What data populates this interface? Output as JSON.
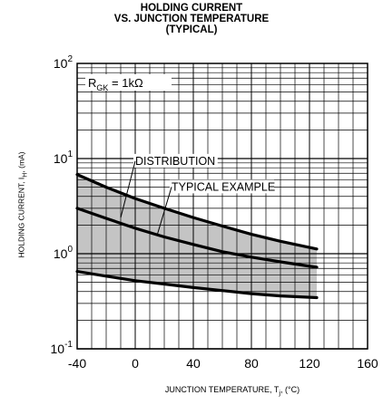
{
  "chart_data": {
    "type": "line",
    "title": "HOLDING CURRENT",
    "subtitle": [
      "VS. JUNCTION TEMPERATURE",
      "(TYPICAL)"
    ],
    "xlabel": "JUNCTION TEMPERATURE, T",
    "xlabel_sub": "j",
    "xlabel_unit": ", (°C)",
    "ylabel": "HOLDING CURRENT, I",
    "ylabel_sub": "H",
    "ylabel_unit": ", (mA)",
    "x_ticks": [
      "-40",
      "0",
      "40",
      "80",
      "120",
      "160"
    ],
    "xlim": [
      -40,
      160
    ],
    "y_scale": "log",
    "ylim": [
      0.1,
      100
    ],
    "y_ticks": [
      {
        "value": 100,
        "base": "10",
        "exp": "2"
      },
      {
        "value": 10,
        "base": "10",
        "exp": "1"
      },
      {
        "value": 1,
        "base": "10",
        "exp": "0"
      },
      {
        "value": 0.1,
        "base": "10",
        "exp": "-1"
      }
    ],
    "grid": true,
    "condition": {
      "prefix": "R",
      "sub": "GK",
      "suffix": " = 1kΩ"
    },
    "series": [
      {
        "role": "upper-limit",
        "x": [
          -40,
          -20,
          0,
          20,
          40,
          60,
          80,
          100,
          125
        ],
        "y": [
          6.8,
          5.0,
          3.8,
          3.0,
          2.4,
          1.95,
          1.6,
          1.35,
          1.12
        ]
      },
      {
        "role": "typical",
        "x": [
          -40,
          -20,
          0,
          20,
          40,
          60,
          80,
          100,
          125
        ],
        "y": [
          3.0,
          2.35,
          1.85,
          1.5,
          1.25,
          1.05,
          0.92,
          0.82,
          0.72
        ]
      },
      {
        "role": "lower-limit",
        "x": [
          -40,
          -20,
          0,
          20,
          40,
          60,
          80,
          100,
          125
        ],
        "y": [
          0.65,
          0.58,
          0.52,
          0.48,
          0.44,
          0.41,
          0.38,
          0.36,
          0.345
        ]
      }
    ],
    "annotations": [
      {
        "text": "DISTRIBUTION",
        "label_at": [
          0,
          8.6
        ],
        "points_to": [
          -10,
          2.4
        ]
      },
      {
        "text": "TYPICAL EXAMPLE",
        "label_at": [
          25,
          4.6
        ],
        "points_to": [
          15,
          1.55
        ]
      }
    ],
    "colors": {
      "band": "#c4c4c4",
      "line": "#000000",
      "grid": "#000000"
    }
  }
}
